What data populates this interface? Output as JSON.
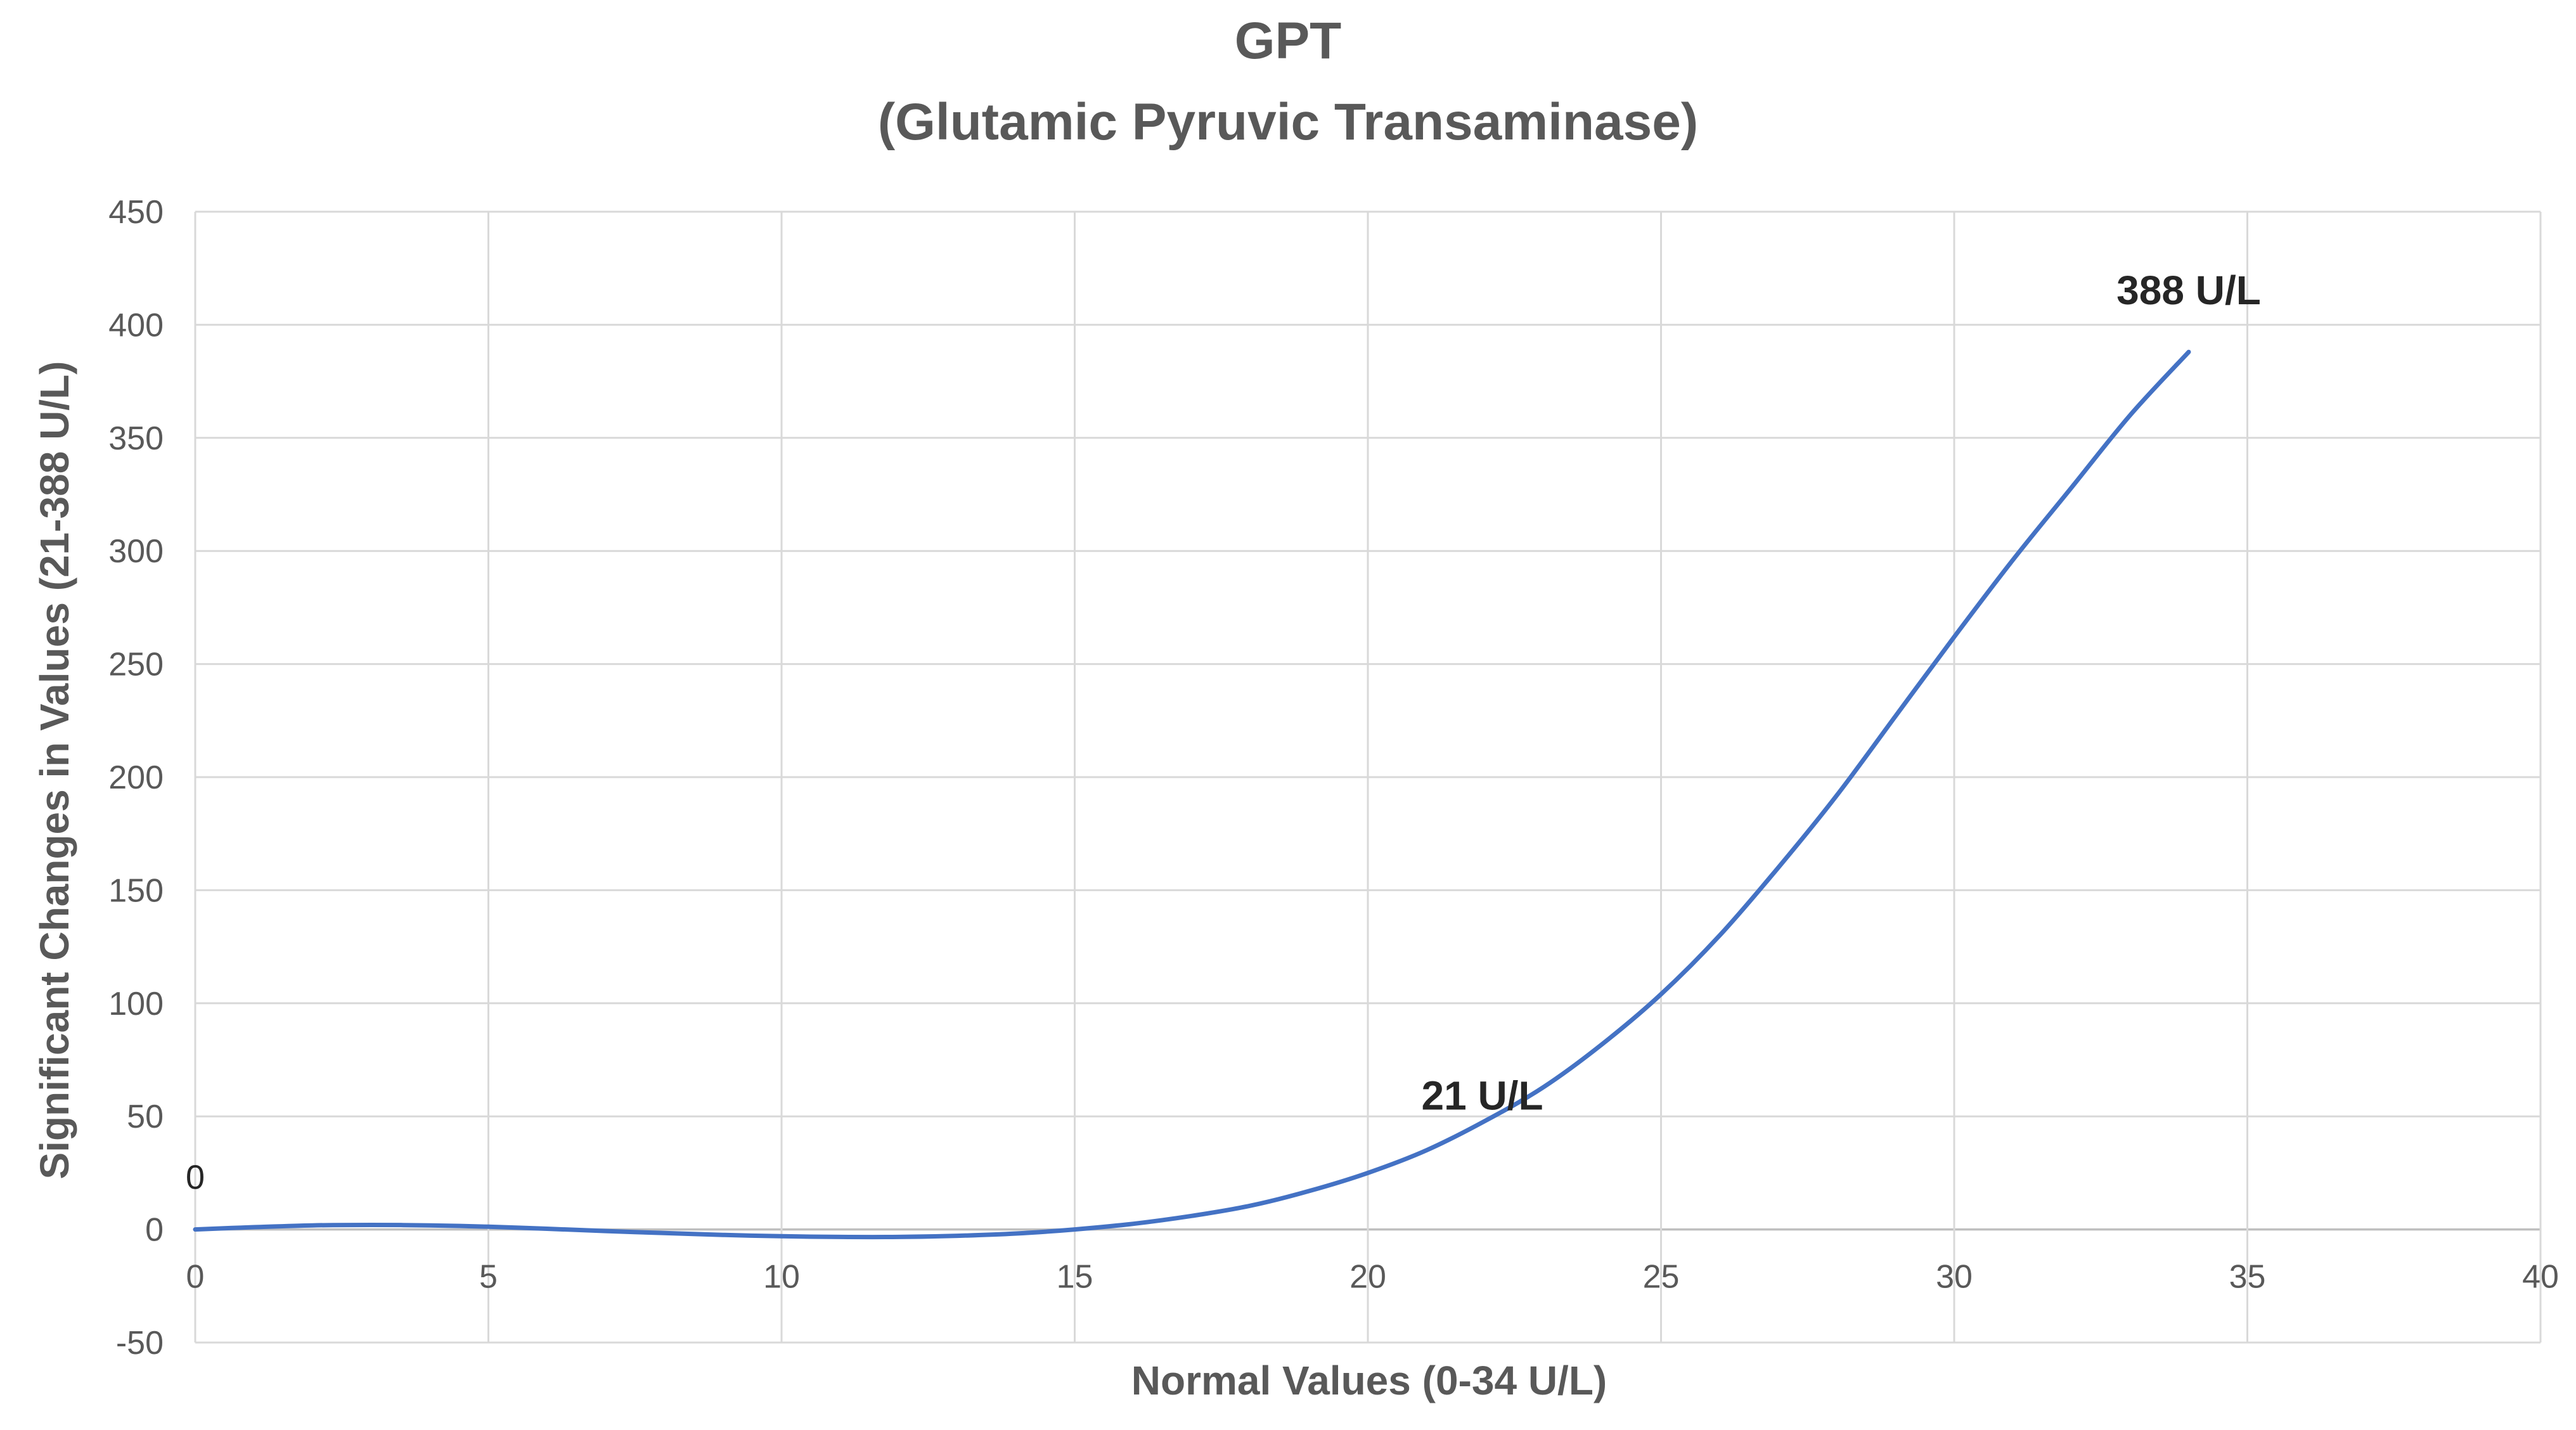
{
  "chart_data": {
    "type": "line",
    "title": "GPT",
    "subtitle": "(Glutamic Pyruvic Transaminase)",
    "xlabel": "Normal Values (0-34 U/L)",
    "ylabel": "Significant Changes in Values (21-388 U/L)",
    "xlim": [
      0,
      40
    ],
    "ylim": [
      -50,
      450
    ],
    "xticks": [
      0,
      5,
      10,
      15,
      20,
      25,
      30,
      35,
      40
    ],
    "yticks": [
      -50,
      0,
      50,
      100,
      150,
      200,
      250,
      300,
      350,
      400,
      450
    ],
    "grid": true,
    "legend": "none",
    "series_color": "#4472c4",
    "series": [
      {
        "x": [
          0,
          1,
          2,
          3,
          4,
          5,
          6,
          7,
          8,
          9,
          10,
          11,
          12,
          13,
          14,
          15,
          16,
          17,
          18,
          19,
          20,
          21,
          22,
          23,
          24,
          25,
          26,
          27,
          28,
          29,
          30,
          31,
          32,
          33,
          34
        ],
        "y": [
          0,
          1,
          1.8,
          2,
          1.8,
          1.2,
          0.3,
          -0.7,
          -1.6,
          -2.4,
          -3,
          -3.3,
          -3.3,
          -2.8,
          -1.8,
          0,
          2.5,
          6,
          10.5,
          17,
          25,
          35,
          48,
          63,
          82,
          104,
          130,
          160,
          192,
          227,
          262,
          296,
          328,
          360,
          388
        ]
      }
    ],
    "annotations": [
      {
        "text": "0",
        "x": 0,
        "y": 0
      },
      {
        "text": "21 U/L",
        "x": 21,
        "y": 35
      },
      {
        "text": "388 U/L",
        "x": 34,
        "y": 388
      }
    ]
  }
}
